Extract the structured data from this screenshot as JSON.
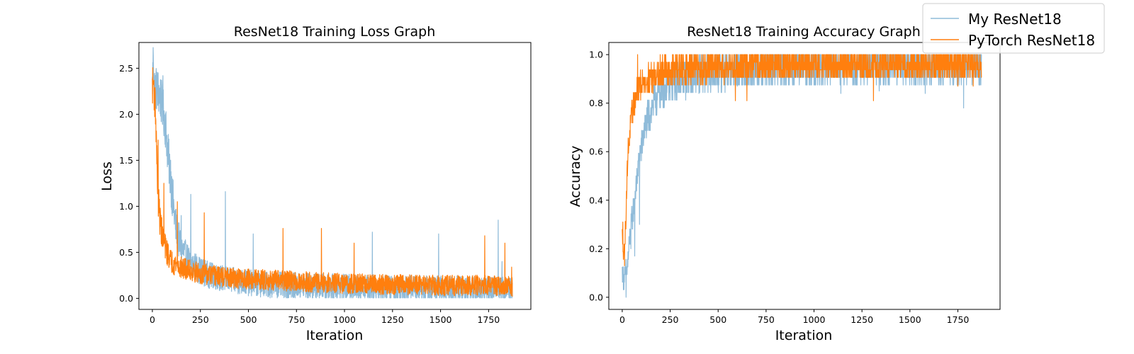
{
  "figure": {
    "background": "#ffffff",
    "colors": {
      "my_resnet": "#1f77b4",
      "pytorch_resnet": "#ff7f0e"
    }
  },
  "legend": {
    "placement": "top-right",
    "entries": [
      "My ResNet18",
      "PyTorch ResNet18"
    ]
  },
  "chart_data": [
    {
      "type": "line",
      "title": "ResNet18 Training Loss Graph",
      "xlabel": "Iteration",
      "ylabel": "Loss",
      "xlim": [
        -70,
        1970
      ],
      "ylim": [
        -0.12,
        2.78
      ],
      "xticks": [
        0,
        250,
        500,
        750,
        1000,
        1250,
        1500,
        1750
      ],
      "yticks": [
        0.0,
        0.5,
        1.0,
        1.5,
        2.0,
        2.5
      ],
      "grid": false,
      "n_points": 1875,
      "series": [
        {
          "name": "My ResNet18",
          "color": "#1f77b4",
          "opacity": 0.5,
          "points": [
            [
              0,
              2.3
            ],
            [
              5,
              2.64
            ],
            [
              10,
              2.3
            ],
            [
              20,
              2.28
            ],
            [
              30,
              2.25
            ],
            [
              40,
              2.2
            ],
            [
              50,
              2.1
            ],
            [
              60,
              2.0
            ],
            [
              70,
              1.85
            ],
            [
              80,
              1.6
            ],
            [
              90,
              1.4
            ],
            [
              100,
              1.2
            ],
            [
              110,
              1.0
            ],
            [
              120,
              0.8
            ],
            [
              135,
              0.65
            ],
            [
              150,
              0.55
            ],
            [
              175,
              0.45
            ],
            [
              200,
              0.38
            ],
            [
              250,
              0.3
            ],
            [
              300,
              0.25
            ],
            [
              400,
              0.2
            ],
            [
              500,
              0.17
            ],
            [
              600,
              0.15
            ],
            [
              800,
              0.13
            ],
            [
              1000,
              0.12
            ],
            [
              1250,
              0.11
            ],
            [
              1500,
              0.1
            ],
            [
              1750,
              0.1
            ],
            [
              1875,
              0.09
            ]
          ],
          "spikes": [
            [
              5,
              2.64
            ],
            [
              55,
              2.42
            ],
            [
              95,
              1.5
            ],
            [
              150,
              0.9
            ],
            [
              200,
              1.13
            ],
            [
              380,
              1.16
            ],
            [
              525,
              0.7
            ],
            [
              1145,
              0.72
            ],
            [
              1490,
              0.7
            ],
            [
              1800,
              0.85
            ],
            [
              1820,
              0.4
            ]
          ],
          "noise": 0.18
        },
        {
          "name": "PyTorch ResNet18",
          "color": "#ff7f0e",
          "opacity": 1,
          "points": [
            [
              0,
              2.3
            ],
            [
              5,
              2.35
            ],
            [
              10,
              2.2
            ],
            [
              15,
              2.1
            ],
            [
              20,
              1.8
            ],
            [
              25,
              1.4
            ],
            [
              30,
              1.1
            ],
            [
              40,
              0.85
            ],
            [
              50,
              0.7
            ],
            [
              60,
              0.6
            ],
            [
              80,
              0.48
            ],
            [
              100,
              0.4
            ],
            [
              150,
              0.33
            ],
            [
              200,
              0.3
            ],
            [
              250,
              0.27
            ],
            [
              400,
              0.22
            ],
            [
              600,
              0.2
            ],
            [
              800,
              0.18
            ],
            [
              1000,
              0.16
            ],
            [
              1250,
              0.15
            ],
            [
              1500,
              0.14
            ],
            [
              1750,
              0.14
            ],
            [
              1875,
              0.13
            ]
          ],
          "spikes": [
            [
              8,
              2.37
            ],
            [
              30,
              1.72
            ],
            [
              60,
              1.25
            ],
            [
              130,
              1.05
            ],
            [
              270,
              0.93
            ],
            [
              680,
              0.76
            ],
            [
              880,
              0.76
            ],
            [
              1050,
              0.6
            ],
            [
              1730,
              0.68
            ],
            [
              1835,
              0.6
            ],
            [
              1870,
              0.34
            ]
          ],
          "noise": 0.14
        }
      ]
    },
    {
      "type": "line",
      "title": "ResNet18 Training Accuracy Graph",
      "xlabel": "Iteration",
      "ylabel": "Accuracy",
      "xlim": [
        -70,
        1970
      ],
      "ylim": [
        -0.05,
        1.05
      ],
      "xticks": [
        0,
        250,
        500,
        750,
        1000,
        1250,
        1500,
        1750
      ],
      "yticks": [
        0.0,
        0.2,
        0.4,
        0.6,
        0.8,
        1.0
      ],
      "grid": false,
      "n_points": 1875,
      "series": [
        {
          "name": "My ResNet18",
          "color": "#1f77b4",
          "opacity": 0.5,
          "points": [
            [
              0,
              0.1
            ],
            [
              10,
              0.08
            ],
            [
              20,
              0.1
            ],
            [
              30,
              0.15
            ],
            [
              40,
              0.25
            ],
            [
              50,
              0.32
            ],
            [
              60,
              0.38
            ],
            [
              70,
              0.45
            ],
            [
              80,
              0.5
            ],
            [
              90,
              0.58
            ],
            [
              100,
              0.62
            ],
            [
              120,
              0.7
            ],
            [
              140,
              0.75
            ],
            [
              160,
              0.8
            ],
            [
              200,
              0.85
            ],
            [
              250,
              0.88
            ],
            [
              300,
              0.9
            ],
            [
              400,
              0.92
            ],
            [
              600,
              0.94
            ],
            [
              800,
              0.95
            ],
            [
              1000,
              0.95
            ],
            [
              1250,
              0.96
            ],
            [
              1500,
              0.96
            ],
            [
              1875,
              0.96
            ]
          ],
          "spikes": [
            [
              20,
              0.0
            ],
            [
              45,
              0.2
            ],
            [
              65,
              0.17
            ],
            [
              90,
              0.3
            ],
            [
              1780,
              0.78
            ],
            [
              1580,
              0.84
            ],
            [
              1340,
              0.85
            ],
            [
              1140,
              0.84
            ],
            [
              400,
              0.84
            ],
            [
              600,
              0.87
            ]
          ],
          "noise": 0.06,
          "clip_max": 1.0
        },
        {
          "name": "PyTorch ResNet18",
          "color": "#ff7f0e",
          "opacity": 1,
          "points": [
            [
              0,
              0.25
            ],
            [
              5,
              0.2
            ],
            [
              10,
              0.18
            ],
            [
              15,
              0.25
            ],
            [
              20,
              0.35
            ],
            [
              25,
              0.5
            ],
            [
              30,
              0.6
            ],
            [
              40,
              0.68
            ],
            [
              50,
              0.75
            ],
            [
              60,
              0.8
            ],
            [
              80,
              0.85
            ],
            [
              100,
              0.88
            ],
            [
              150,
              0.91
            ],
            [
              200,
              0.93
            ],
            [
              300,
              0.94
            ],
            [
              500,
              0.95
            ],
            [
              750,
              0.96
            ],
            [
              1000,
              0.96
            ],
            [
              1250,
              0.96
            ],
            [
              1500,
              0.96
            ],
            [
              1875,
              0.96
            ]
          ],
          "spikes": [
            [
              3,
              0.31
            ],
            [
              12,
              0.13
            ],
            [
              80,
              1.0
            ],
            [
              300,
              1.0
            ],
            [
              1310,
              0.81
            ],
            [
              590,
              0.81
            ],
            [
              650,
              0.81
            ],
            [
              1750,
              0.87
            ],
            [
              1830,
              0.87
            ],
            [
              160,
              0.84
            ]
          ],
          "noise": 0.045,
          "clip_max": 1.0
        }
      ]
    }
  ]
}
